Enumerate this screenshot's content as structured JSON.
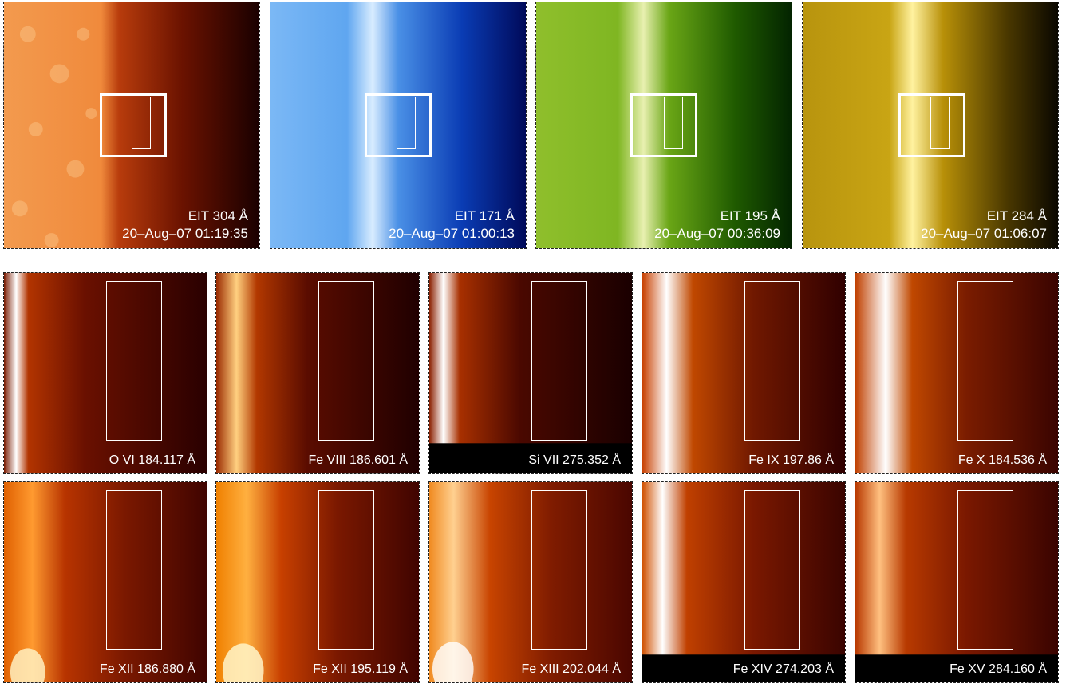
{
  "eit_panels": [
    {
      "name": "EIT 304 Å",
      "time": "20–Aug–07 01:19:35",
      "palette": [
        "#f7a45a",
        "#c84a12",
        "#1a0000"
      ]
    },
    {
      "name": "EIT 171 Å",
      "time": "20–Aug–07 01:00:13",
      "palette": [
        "#8fc8ff",
        "#2d7fe0",
        "#000a5a"
      ]
    },
    {
      "name": "EIT 195 Å",
      "time": "20–Aug–07 00:36:09",
      "palette": [
        "#b6d24a",
        "#5f9a12",
        "#032400"
      ]
    },
    {
      "name": "EIT 284 Å",
      "time": "20–Aug–07 01:06:07",
      "palette": [
        "#c9a51c",
        "#b08a08",
        "#0a0700"
      ]
    }
  ],
  "eis_panels": [
    {
      "name": "O VI 184.117 Å"
    },
    {
      "name": "Fe VIII 186.601 Å"
    },
    {
      "name": "Si VII 275.352 Å"
    },
    {
      "name": "Fe IX 197.86 Å"
    },
    {
      "name": "Fe X 184.536 Å"
    },
    {
      "name": "Fe XII 186.880 Å"
    },
    {
      "name": "Fe XII 195.119 Å"
    },
    {
      "name": "Fe XIII 202.044 Å"
    },
    {
      "name": "Fe XIV 274.203 Å"
    },
    {
      "name": "Fe XV 284.160 Å"
    }
  ]
}
